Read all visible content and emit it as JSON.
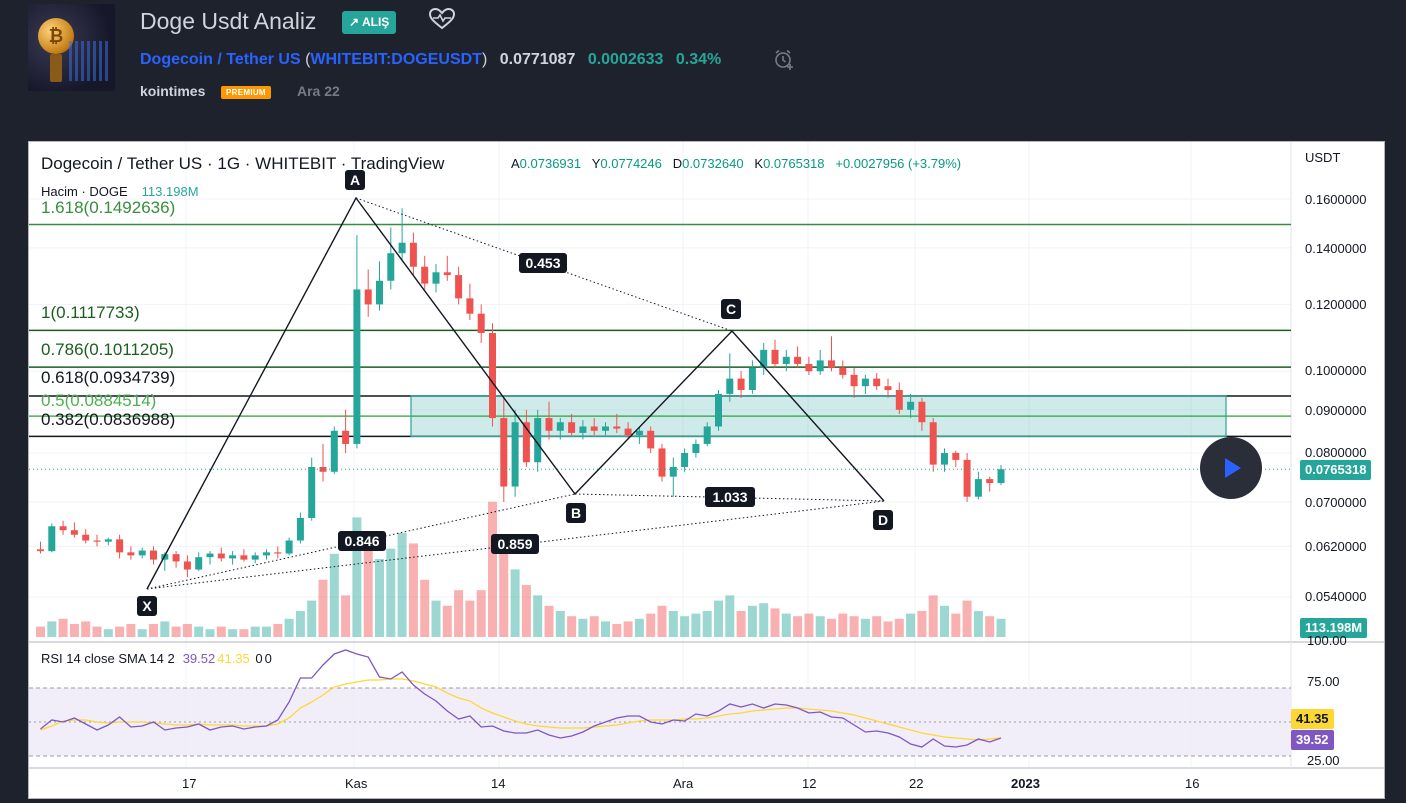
{
  "header": {
    "title": "Doge Usdt Analiz",
    "idea_type": "ALIŞ",
    "symbol_name": "Dogecoin / Tether US",
    "symbol_code": "WHITEBIT:DOGEUSDT",
    "price": "0.0771087",
    "change_abs": "0.0002633",
    "change_pct": "0.34%",
    "author": "kointimes",
    "author_badge": "PREMIUM",
    "published_date": "Ara 22"
  },
  "chart": {
    "legend_title": "Dogecoin / Tether US · 1G · WHITEBIT · TradingView",
    "ohlc": {
      "o_label": "A",
      "o": "0.0736931",
      "h_label": "Y",
      "h": "0.0774246",
      "l_label": "D",
      "l": "0.0732640",
      "c_label": "K",
      "c": "0.0765318",
      "change": "+0.0027956 (+3.79%)"
    },
    "volume_legend": "Hacim · DOGE",
    "volume_value": "113.198M",
    "currency": "USDT",
    "current_price_tag": "0.0765318",
    "volume_tag": "113.198M",
    "rsi_legend": "RSI 14 close SMA 14 2",
    "rsi_value": "39.52",
    "rsi_sma_value": "41.35",
    "rsi_zero_1": "0",
    "rsi_zero_2": "0",
    "price_axis": [
      "0.1600000",
      "0.1400000",
      "0.1200000",
      "0.1000000",
      "0.0900000",
      "0.0800000",
      "0.0700000",
      "0.0620000",
      "0.0540000"
    ],
    "rsi_axis": [
      "100.00",
      "75.00",
      "25.00"
    ],
    "time_axis": [
      "17",
      "Kas",
      "14",
      "Ara",
      "12",
      "22",
      "2023",
      "16"
    ],
    "fib_levels": [
      {
        "label": "1.618(0.1492636)",
        "color": "#388e3c"
      },
      {
        "label": "1(0.1117733)",
        "color": "#1b5e20"
      },
      {
        "label": "0.786(0.1011205)",
        "color": "#1b5e20"
      },
      {
        "label": "0.618(0.0934739)",
        "color": "#131722"
      },
      {
        "label": "0.5(0.0884514)",
        "color": "#4caf50"
      },
      {
        "label": "0.382(0.0836988)",
        "color": "#131722"
      }
    ],
    "pattern_points": [
      "X",
      "A",
      "B",
      "C",
      "D"
    ],
    "ratios": [
      "0.453",
      "0.846",
      "0.859",
      "1.033"
    ],
    "colors": {
      "up": "#26a69a",
      "down": "#ef5350",
      "rsi": "#7e57c2",
      "rsi_sma": "#fdd835"
    }
  },
  "chart_data": {
    "type": "candlestick",
    "title": "Dogecoin / Tether US · 1G · WHITEBIT · TradingView",
    "y_scale": "log",
    "ylim": [
      0.05,
      0.165
    ],
    "last_candle": {
      "open": 0.0736931,
      "high": 0.0774246,
      "low": 0.073264,
      "close": 0.0765318
    },
    "volume_last": "113.198M",
    "rsi": {
      "value": 39.52,
      "sma": 41.35,
      "ylim": [
        25,
        100
      ]
    }
  }
}
